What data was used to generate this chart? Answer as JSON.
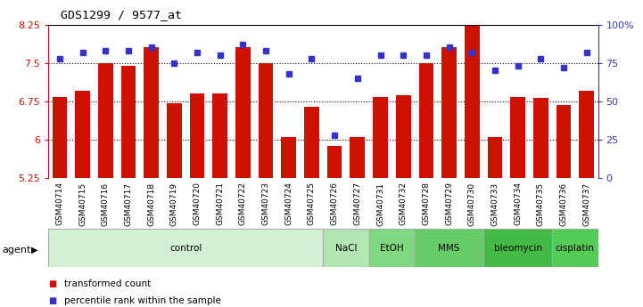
{
  "title": "GDS1299 / 9577_at",
  "samples": [
    "GSM40714",
    "GSM40715",
    "GSM40716",
    "GSM40717",
    "GSM40718",
    "GSM40719",
    "GSM40720",
    "GSM40721",
    "GSM40722",
    "GSM40723",
    "GSM40724",
    "GSM40725",
    "GSM40726",
    "GSM40727",
    "GSM40731",
    "GSM40732",
    "GSM40728",
    "GSM40729",
    "GSM40730",
    "GSM40733",
    "GSM40734",
    "GSM40735",
    "GSM40736",
    "GSM40737"
  ],
  "bar_values": [
    6.83,
    6.95,
    7.5,
    7.45,
    7.8,
    6.72,
    6.9,
    6.9,
    7.8,
    7.5,
    6.05,
    6.65,
    5.88,
    6.05,
    6.83,
    6.87,
    7.5,
    7.8,
    8.35,
    6.05,
    6.83,
    6.82,
    6.68,
    6.95
  ],
  "percentile_values": [
    78,
    82,
    83,
    83,
    85,
    75,
    82,
    80,
    87,
    83,
    68,
    78,
    28,
    65,
    80,
    80,
    80,
    85,
    82,
    70,
    73,
    78,
    72,
    82
  ],
  "groups": [
    {
      "label": "control",
      "start": 0,
      "end": 12,
      "color": "#d4f0d4"
    },
    {
      "label": "NaCl",
      "start": 12,
      "end": 14,
      "color": "#b2e6b2"
    },
    {
      "label": "EtOH",
      "start": 14,
      "end": 16,
      "color": "#80d980"
    },
    {
      "label": "MMS",
      "start": 16,
      "end": 19,
      "color": "#66cc66"
    },
    {
      "label": "bleomycin",
      "start": 19,
      "end": 22,
      "color": "#44bb44"
    },
    {
      "label": "cisplatin",
      "start": 22,
      "end": 24,
      "color": "#55cc55"
    }
  ],
  "bar_color": "#cc1100",
  "dot_color": "#3333cc",
  "ylim_left": [
    5.25,
    8.25
  ],
  "ylim_right": [
    0,
    100
  ],
  "yticks_left": [
    5.25,
    6.0,
    6.75,
    7.5,
    8.25
  ],
  "ytick_labels_left": [
    "5.25",
    "6",
    "6.75",
    "7.5",
    "8.25"
  ],
  "yticks_right": [
    0,
    25,
    50,
    75,
    100
  ],
  "ytick_labels_right": [
    "0",
    "25",
    "50",
    "75",
    "100%"
  ],
  "grid_values": [
    6.0,
    6.75,
    7.5
  ],
  "background_color": "#ffffff",
  "agent_label": "agent",
  "legend_bar_label": "transformed count",
  "legend_dot_label": "percentile rank within the sample"
}
